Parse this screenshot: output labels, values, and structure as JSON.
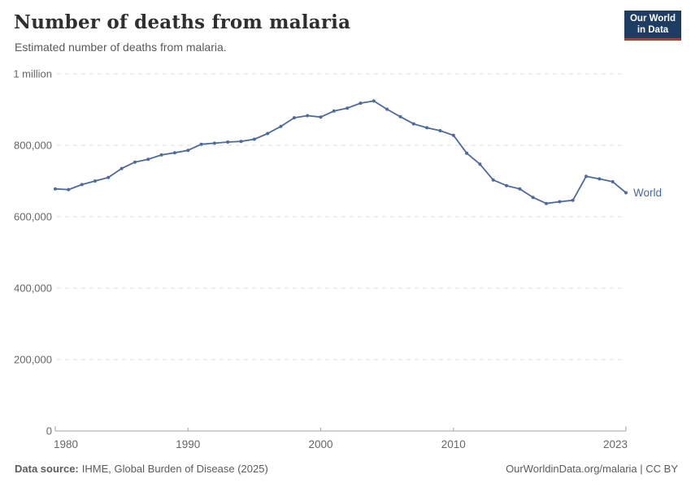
{
  "logo": {
    "line1": "Our World",
    "line2": "in Data",
    "bg": "#1d3d63",
    "stripe": "#d42b21"
  },
  "footer": {
    "source_label": "Data source:",
    "source_value": "IHME, Global Burden of Disease (2025)",
    "right_text": "OurWorldinData.org/malaria | CC BY"
  },
  "colors": {
    "line": "#4c6a9c",
    "grid": "#dcdcdc",
    "axis": "#a3a3a3",
    "tick_text": "#666666",
    "title_text": "#2f2f2f",
    "subtitle_text": "#595959",
    "footer_text": "#5b5b5b"
  },
  "chart_data": {
    "type": "line",
    "title": "Number of deaths from malaria",
    "subtitle": "Estimated number of deaths from malaria.",
    "xlabel": "",
    "ylabel": "",
    "xlim": [
      1980,
      2023
    ],
    "ylim": [
      0,
      1000000
    ],
    "grid": "horizontal-dashed",
    "legend": "inline-end-of-line-label",
    "x": [
      1980,
      1981,
      1982,
      1983,
      1984,
      1985,
      1986,
      1987,
      1988,
      1989,
      1990,
      1991,
      1992,
      1993,
      1994,
      1995,
      1996,
      1997,
      1998,
      1999,
      2000,
      2001,
      2002,
      2003,
      2004,
      2005,
      2006,
      2007,
      2008,
      2009,
      2010,
      2011,
      2012,
      2013,
      2014,
      2015,
      2016,
      2017,
      2018,
      2019,
      2020,
      2021,
      2022,
      2023
    ],
    "series": [
      {
        "name": "World",
        "color": "#4c6a9c",
        "values": [
          678000,
          676000,
          690000,
          700000,
          710000,
          735000,
          753000,
          761000,
          773000,
          779000,
          786000,
          803000,
          806000,
          809000,
          811000,
          817000,
          833000,
          853000,
          877000,
          883000,
          879000,
          896000,
          904000,
          918000,
          924000,
          901000,
          880000,
          860000,
          849000,
          841000,
          828000,
          778000,
          747000,
          703000,
          687000,
          678000,
          654000,
          637000,
          642000,
          646000,
          713000,
          706000,
          698000,
          667000
        ]
      }
    ],
    "yticks": [
      {
        "value": 0,
        "label": "0"
      },
      {
        "value": 200000,
        "label": "200,000"
      },
      {
        "value": 400000,
        "label": "400,000"
      },
      {
        "value": 600000,
        "label": "600,000"
      },
      {
        "value": 800000,
        "label": "800,000"
      },
      {
        "value": 1000000,
        "label": "1 million"
      }
    ],
    "xticks": [
      {
        "value": 1980,
        "label": "1980"
      },
      {
        "value": 1990,
        "label": "1990"
      },
      {
        "value": 2000,
        "label": "2000"
      },
      {
        "value": 2010,
        "label": "2010"
      },
      {
        "value": 2023,
        "label": "2023"
      }
    ]
  }
}
